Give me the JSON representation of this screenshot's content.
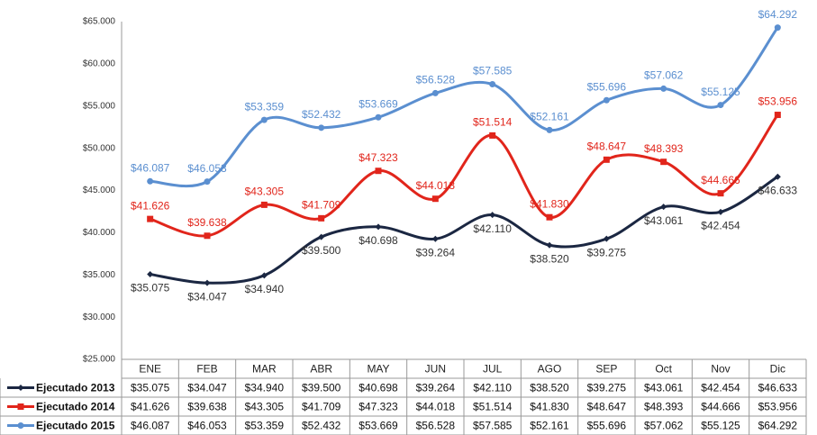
{
  "chart_data": {
    "type": "line",
    "categories": [
      "ENE",
      "FEB",
      "MAR",
      "ABR",
      "MAY",
      "JUN",
      "JUL",
      "AGO",
      "SEP",
      "Oct",
      "Nov",
      "Dic"
    ],
    "ylim": [
      25000,
      65000
    ],
    "yticks": [
      {
        "value": 25000,
        "label": "$25.000"
      },
      {
        "value": 30000,
        "label": "$30.000"
      },
      {
        "value": 35000,
        "label": "$35.000"
      },
      {
        "value": 40000,
        "label": "$40.000"
      },
      {
        "value": 45000,
        "label": "$45.000"
      },
      {
        "value": 50000,
        "label": "$50.000"
      },
      {
        "value": 55000,
        "label": "$55.000"
      },
      {
        "value": 60000,
        "label": "$60.000"
      },
      {
        "value": 65000,
        "label": "$65.000"
      }
    ],
    "grid": false,
    "series": [
      {
        "name": "Ejecutado 2013",
        "color": "#1b2742",
        "marker": "diamond",
        "values": [
          35075,
          34047,
          34940,
          39500,
          40698,
          39264,
          42110,
          38520,
          39275,
          43061,
          42454,
          46633
        ],
        "value_labels": [
          "$35.075",
          "$34.047",
          "$34.940",
          "$39.500",
          "$40.698",
          "$39.264",
          "$42.110",
          "$38.520",
          "$39.275",
          "$43.061",
          "$42.454",
          "$46.633"
        ]
      },
      {
        "name": "Ejecutado 2014",
        "color": "#e1251b",
        "marker": "square",
        "values": [
          41626,
          39638,
          43305,
          41709,
          47323,
          44018,
          51514,
          41830,
          48647,
          48393,
          44666,
          53956
        ],
        "value_labels": [
          "$41.626",
          "$39.638",
          "$43.305",
          "$41.709",
          "$47.323",
          "$44.018",
          "$51.514",
          "$41.830",
          "$48.647",
          "$48.393",
          "$44.666",
          "$53.956"
        ]
      },
      {
        "name": "Ejecutado 2015",
        "color": "#5b8fd0",
        "marker": "circle",
        "values": [
          46087,
          46053,
          53359,
          52432,
          53669,
          56528,
          57585,
          52161,
          55696,
          57062,
          55125,
          64292
        ],
        "value_labels": [
          "$46.087",
          "$46.053",
          "$53.359",
          "$52.432",
          "$53.669",
          "$56.528",
          "$57.585",
          "$52.161",
          "$55.696",
          "$57.062",
          "$55.125",
          "$64.292"
        ]
      }
    ]
  }
}
